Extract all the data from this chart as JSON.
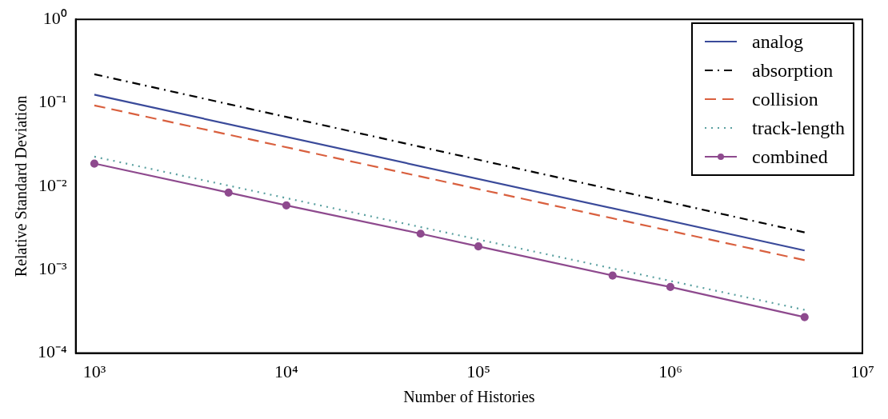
{
  "chart_data": {
    "type": "line",
    "xlabel": "Number of Histories",
    "ylabel": "Relative Standard Deviation",
    "log": "xy",
    "xlim": [
      800,
      10000000
    ],
    "ylim": [
      0.0001,
      1
    ],
    "xticks": [
      {
        "value": 1000,
        "label": "10³"
      },
      {
        "value": 10000,
        "label": "10⁴"
      },
      {
        "value": 100000,
        "label": "10⁵"
      },
      {
        "value": 1000000,
        "label": "10⁶"
      },
      {
        "value": 10000000,
        "label": "10⁷"
      }
    ],
    "yticks": [
      {
        "value": 0.0001,
        "label": "10⁻⁴"
      },
      {
        "value": 0.001,
        "label": "10⁻³"
      },
      {
        "value": 0.01,
        "label": "10⁻²"
      },
      {
        "value": 0.1,
        "label": "10⁻¹"
      },
      {
        "value": 1,
        "label": "10⁰"
      }
    ],
    "grid": false,
    "legend": "top right",
    "series": [
      {
        "name": "analog",
        "color": "#3a4a9a",
        "line_style": "solid",
        "marker": "none",
        "x": [
          1000,
          5000000
        ],
        "values": [
          0.125,
          0.0017
        ]
      },
      {
        "name": "absorption",
        "color": "#000000",
        "line_style": "dashdot",
        "marker": "none",
        "x": [
          1000,
          5000000
        ],
        "values": [
          0.22,
          0.0028
        ]
      },
      {
        "name": "collision",
        "color": "#d9603f",
        "line_style": "dashed",
        "marker": "none",
        "x": [
          1000,
          5000000
        ],
        "values": [
          0.093,
          0.0013
        ]
      },
      {
        "name": "track-length",
        "color": "#5aa0a0",
        "line_style": "dotted",
        "marker": "none",
        "x": [
          1000,
          5000000
        ],
        "values": [
          0.0226,
          0.00033
        ]
      },
      {
        "name": "combined",
        "color": "#8e4a8e",
        "line_style": "solid",
        "marker": "circle",
        "x": [
          1000,
          5000,
          10000,
          50000,
          100000,
          500000,
          1000000,
          5000000
        ],
        "values": [
          0.0187,
          0.0084,
          0.0059,
          0.0027,
          0.0019,
          0.00085,
          0.00062,
          0.00027
        ]
      }
    ]
  }
}
